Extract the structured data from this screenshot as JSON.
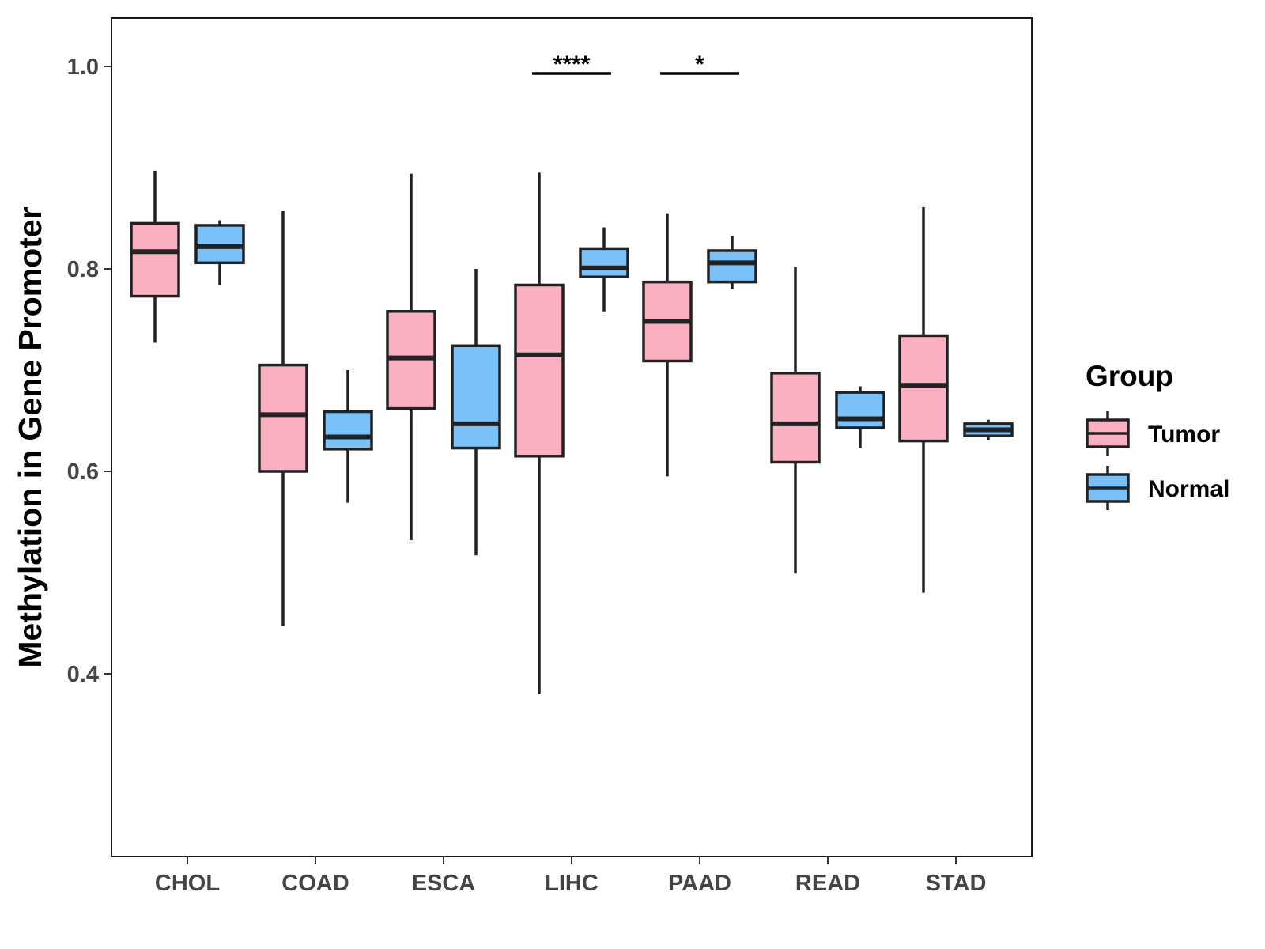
{
  "chart_data": {
    "type": "boxplot",
    "title": "",
    "xlabel": "",
    "ylabel": "Methylation in Gene Promoter",
    "ylim": [
      0.22,
      1.05
    ],
    "yticks": [
      0.4,
      0.6,
      0.8,
      1.0
    ],
    "ytick_labels": [
      "0.4",
      "0.6",
      "0.8",
      "1.0"
    ],
    "categories": [
      "CHOL",
      "COAD",
      "ESCA",
      "LIHC",
      "PAAD",
      "READ",
      "STAD"
    ],
    "grid": false,
    "legend": {
      "title": "Group",
      "position": "right",
      "entries": [
        "Tumor",
        "Normal"
      ]
    },
    "colors": {
      "Tumor": "#FBB0C2",
      "Normal": "#79C1F8",
      "outline": "#222222"
    },
    "series": [
      {
        "name": "Tumor",
        "boxes": [
          {
            "category": "CHOL",
            "min": 0.727,
            "q1": 0.773,
            "median": 0.817,
            "q3": 0.845,
            "max": 0.897
          },
          {
            "category": "COAD",
            "min": 0.447,
            "q1": 0.6,
            "median": 0.656,
            "q3": 0.705,
            "max": 0.857
          },
          {
            "category": "ESCA",
            "min": 0.532,
            "q1": 0.662,
            "median": 0.712,
            "q3": 0.758,
            "max": 0.894
          },
          {
            "category": "LIHC",
            "min": 0.38,
            "q1": 0.615,
            "median": 0.715,
            "q3": 0.784,
            "max": 0.895
          },
          {
            "category": "PAAD",
            "min": 0.595,
            "q1": 0.709,
            "median": 0.748,
            "q3": 0.787,
            "max": 0.855
          },
          {
            "category": "READ",
            "min": 0.499,
            "q1": 0.609,
            "median": 0.647,
            "q3": 0.697,
            "max": 0.802
          },
          {
            "category": "STAD",
            "min": 0.48,
            "q1": 0.63,
            "median": 0.685,
            "q3": 0.734,
            "max": 0.861
          }
        ]
      },
      {
        "name": "Normal",
        "boxes": [
          {
            "category": "CHOL",
            "min": 0.784,
            "q1": 0.806,
            "median": 0.822,
            "q3": 0.843,
            "max": 0.848
          },
          {
            "category": "COAD",
            "min": 0.569,
            "q1": 0.622,
            "median": 0.634,
            "q3": 0.659,
            "max": 0.7
          },
          {
            "category": "ESCA",
            "min": 0.517,
            "q1": 0.623,
            "median": 0.647,
            "q3": 0.724,
            "max": 0.8
          },
          {
            "category": "LIHC",
            "min": 0.758,
            "q1": 0.792,
            "median": 0.801,
            "q3": 0.82,
            "max": 0.841
          },
          {
            "category": "PAAD",
            "min": 0.78,
            "q1": 0.787,
            "median": 0.806,
            "q3": 0.818,
            "max": 0.832
          },
          {
            "category": "READ",
            "min": 0.623,
            "q1": 0.643,
            "median": 0.652,
            "q3": 0.678,
            "max": 0.684
          },
          {
            "category": "STAD",
            "min": 0.631,
            "q1": 0.635,
            "median": 0.641,
            "q3": 0.647,
            "max": 0.651
          }
        ]
      }
    ],
    "annotations": [
      {
        "category": "LIHC",
        "label": "****",
        "y": 0.993
      },
      {
        "category": "PAAD",
        "label": "*",
        "y": 0.993
      }
    ]
  }
}
